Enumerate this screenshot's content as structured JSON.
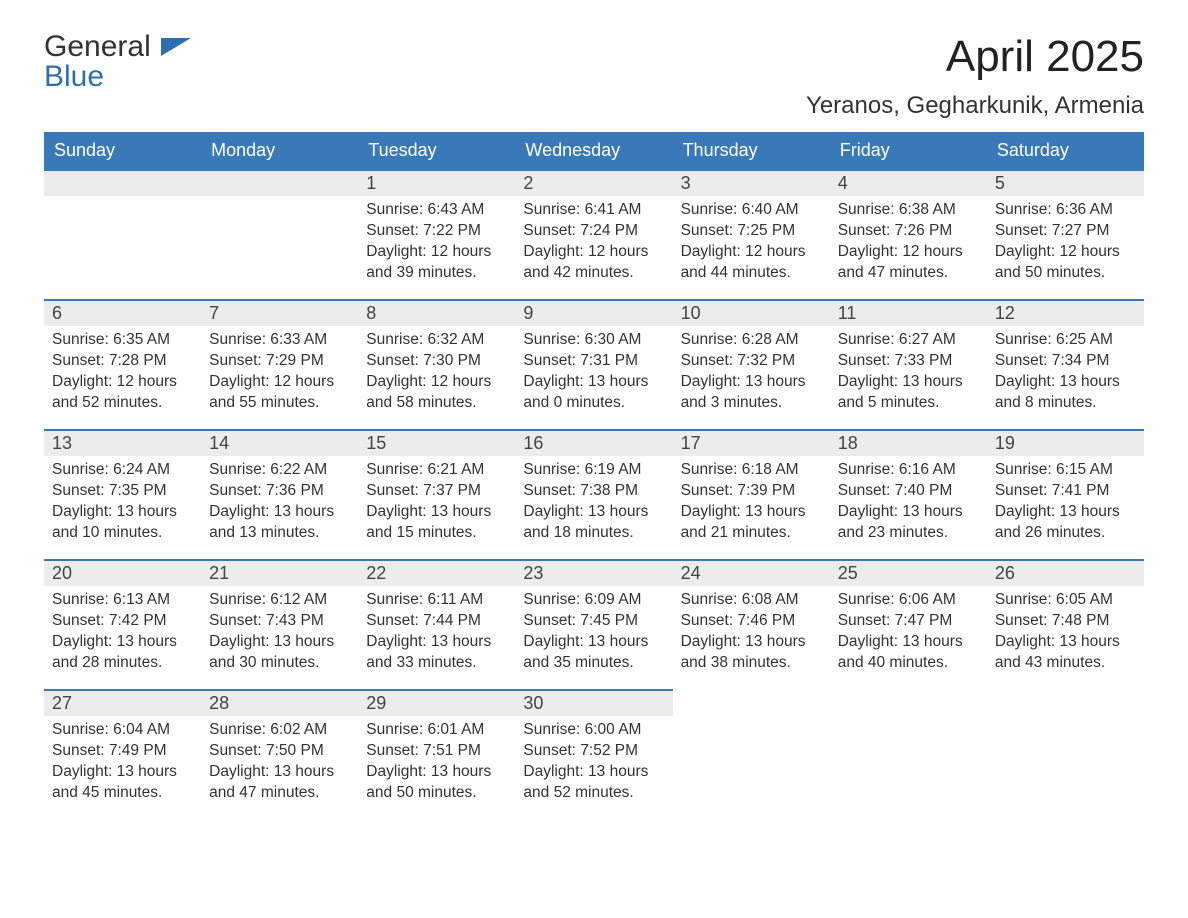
{
  "logo": {
    "line1": "General",
    "line2": "Blue"
  },
  "title": "April 2025",
  "location": "Yeranos, Gegharkunik, Armenia",
  "colors": {
    "header_bg": "#3a79b7",
    "header_text": "#ffffff",
    "daynum_bg": "#ececec",
    "row_border": "#3a79b7",
    "body_text": "#333333",
    "logo_blue": "#2f6fae"
  },
  "weekdays": [
    "Sunday",
    "Monday",
    "Tuesday",
    "Wednesday",
    "Thursday",
    "Friday",
    "Saturday"
  ],
  "weeks": [
    [
      null,
      null,
      {
        "n": "1",
        "sunrise": "6:43 AM",
        "sunset": "7:22 PM",
        "daylight": "12 hours and 39 minutes."
      },
      {
        "n": "2",
        "sunrise": "6:41 AM",
        "sunset": "7:24 PM",
        "daylight": "12 hours and 42 minutes."
      },
      {
        "n": "3",
        "sunrise": "6:40 AM",
        "sunset": "7:25 PM",
        "daylight": "12 hours and 44 minutes."
      },
      {
        "n": "4",
        "sunrise": "6:38 AM",
        "sunset": "7:26 PM",
        "daylight": "12 hours and 47 minutes."
      },
      {
        "n": "5",
        "sunrise": "6:36 AM",
        "sunset": "7:27 PM",
        "daylight": "12 hours and 50 minutes."
      }
    ],
    [
      {
        "n": "6",
        "sunrise": "6:35 AM",
        "sunset": "7:28 PM",
        "daylight": "12 hours and 52 minutes."
      },
      {
        "n": "7",
        "sunrise": "6:33 AM",
        "sunset": "7:29 PM",
        "daylight": "12 hours and 55 minutes."
      },
      {
        "n": "8",
        "sunrise": "6:32 AM",
        "sunset": "7:30 PM",
        "daylight": "12 hours and 58 minutes."
      },
      {
        "n": "9",
        "sunrise": "6:30 AM",
        "sunset": "7:31 PM",
        "daylight": "13 hours and 0 minutes."
      },
      {
        "n": "10",
        "sunrise": "6:28 AM",
        "sunset": "7:32 PM",
        "daylight": "13 hours and 3 minutes."
      },
      {
        "n": "11",
        "sunrise": "6:27 AM",
        "sunset": "7:33 PM",
        "daylight": "13 hours and 5 minutes."
      },
      {
        "n": "12",
        "sunrise": "6:25 AM",
        "sunset": "7:34 PM",
        "daylight": "13 hours and 8 minutes."
      }
    ],
    [
      {
        "n": "13",
        "sunrise": "6:24 AM",
        "sunset": "7:35 PM",
        "daylight": "13 hours and 10 minutes."
      },
      {
        "n": "14",
        "sunrise": "6:22 AM",
        "sunset": "7:36 PM",
        "daylight": "13 hours and 13 minutes."
      },
      {
        "n": "15",
        "sunrise": "6:21 AM",
        "sunset": "7:37 PM",
        "daylight": "13 hours and 15 minutes."
      },
      {
        "n": "16",
        "sunrise": "6:19 AM",
        "sunset": "7:38 PM",
        "daylight": "13 hours and 18 minutes."
      },
      {
        "n": "17",
        "sunrise": "6:18 AM",
        "sunset": "7:39 PM",
        "daylight": "13 hours and 21 minutes."
      },
      {
        "n": "18",
        "sunrise": "6:16 AM",
        "sunset": "7:40 PM",
        "daylight": "13 hours and 23 minutes."
      },
      {
        "n": "19",
        "sunrise": "6:15 AM",
        "sunset": "7:41 PM",
        "daylight": "13 hours and 26 minutes."
      }
    ],
    [
      {
        "n": "20",
        "sunrise": "6:13 AM",
        "sunset": "7:42 PM",
        "daylight": "13 hours and 28 minutes."
      },
      {
        "n": "21",
        "sunrise": "6:12 AM",
        "sunset": "7:43 PM",
        "daylight": "13 hours and 30 minutes."
      },
      {
        "n": "22",
        "sunrise": "6:11 AM",
        "sunset": "7:44 PM",
        "daylight": "13 hours and 33 minutes."
      },
      {
        "n": "23",
        "sunrise": "6:09 AM",
        "sunset": "7:45 PM",
        "daylight": "13 hours and 35 minutes."
      },
      {
        "n": "24",
        "sunrise": "6:08 AM",
        "sunset": "7:46 PM",
        "daylight": "13 hours and 38 minutes."
      },
      {
        "n": "25",
        "sunrise": "6:06 AM",
        "sunset": "7:47 PM",
        "daylight": "13 hours and 40 minutes."
      },
      {
        "n": "26",
        "sunrise": "6:05 AM",
        "sunset": "7:48 PM",
        "daylight": "13 hours and 43 minutes."
      }
    ],
    [
      {
        "n": "27",
        "sunrise": "6:04 AM",
        "sunset": "7:49 PM",
        "daylight": "13 hours and 45 minutes."
      },
      {
        "n": "28",
        "sunrise": "6:02 AM",
        "sunset": "7:50 PM",
        "daylight": "13 hours and 47 minutes."
      },
      {
        "n": "29",
        "sunrise": "6:01 AM",
        "sunset": "7:51 PM",
        "daylight": "13 hours and 50 minutes."
      },
      {
        "n": "30",
        "sunrise": "6:00 AM",
        "sunset": "7:52 PM",
        "daylight": "13 hours and 52 minutes."
      },
      null,
      null,
      null
    ]
  ],
  "labels": {
    "sunrise": "Sunrise: ",
    "sunset": "Sunset: ",
    "daylight": "Daylight: "
  }
}
